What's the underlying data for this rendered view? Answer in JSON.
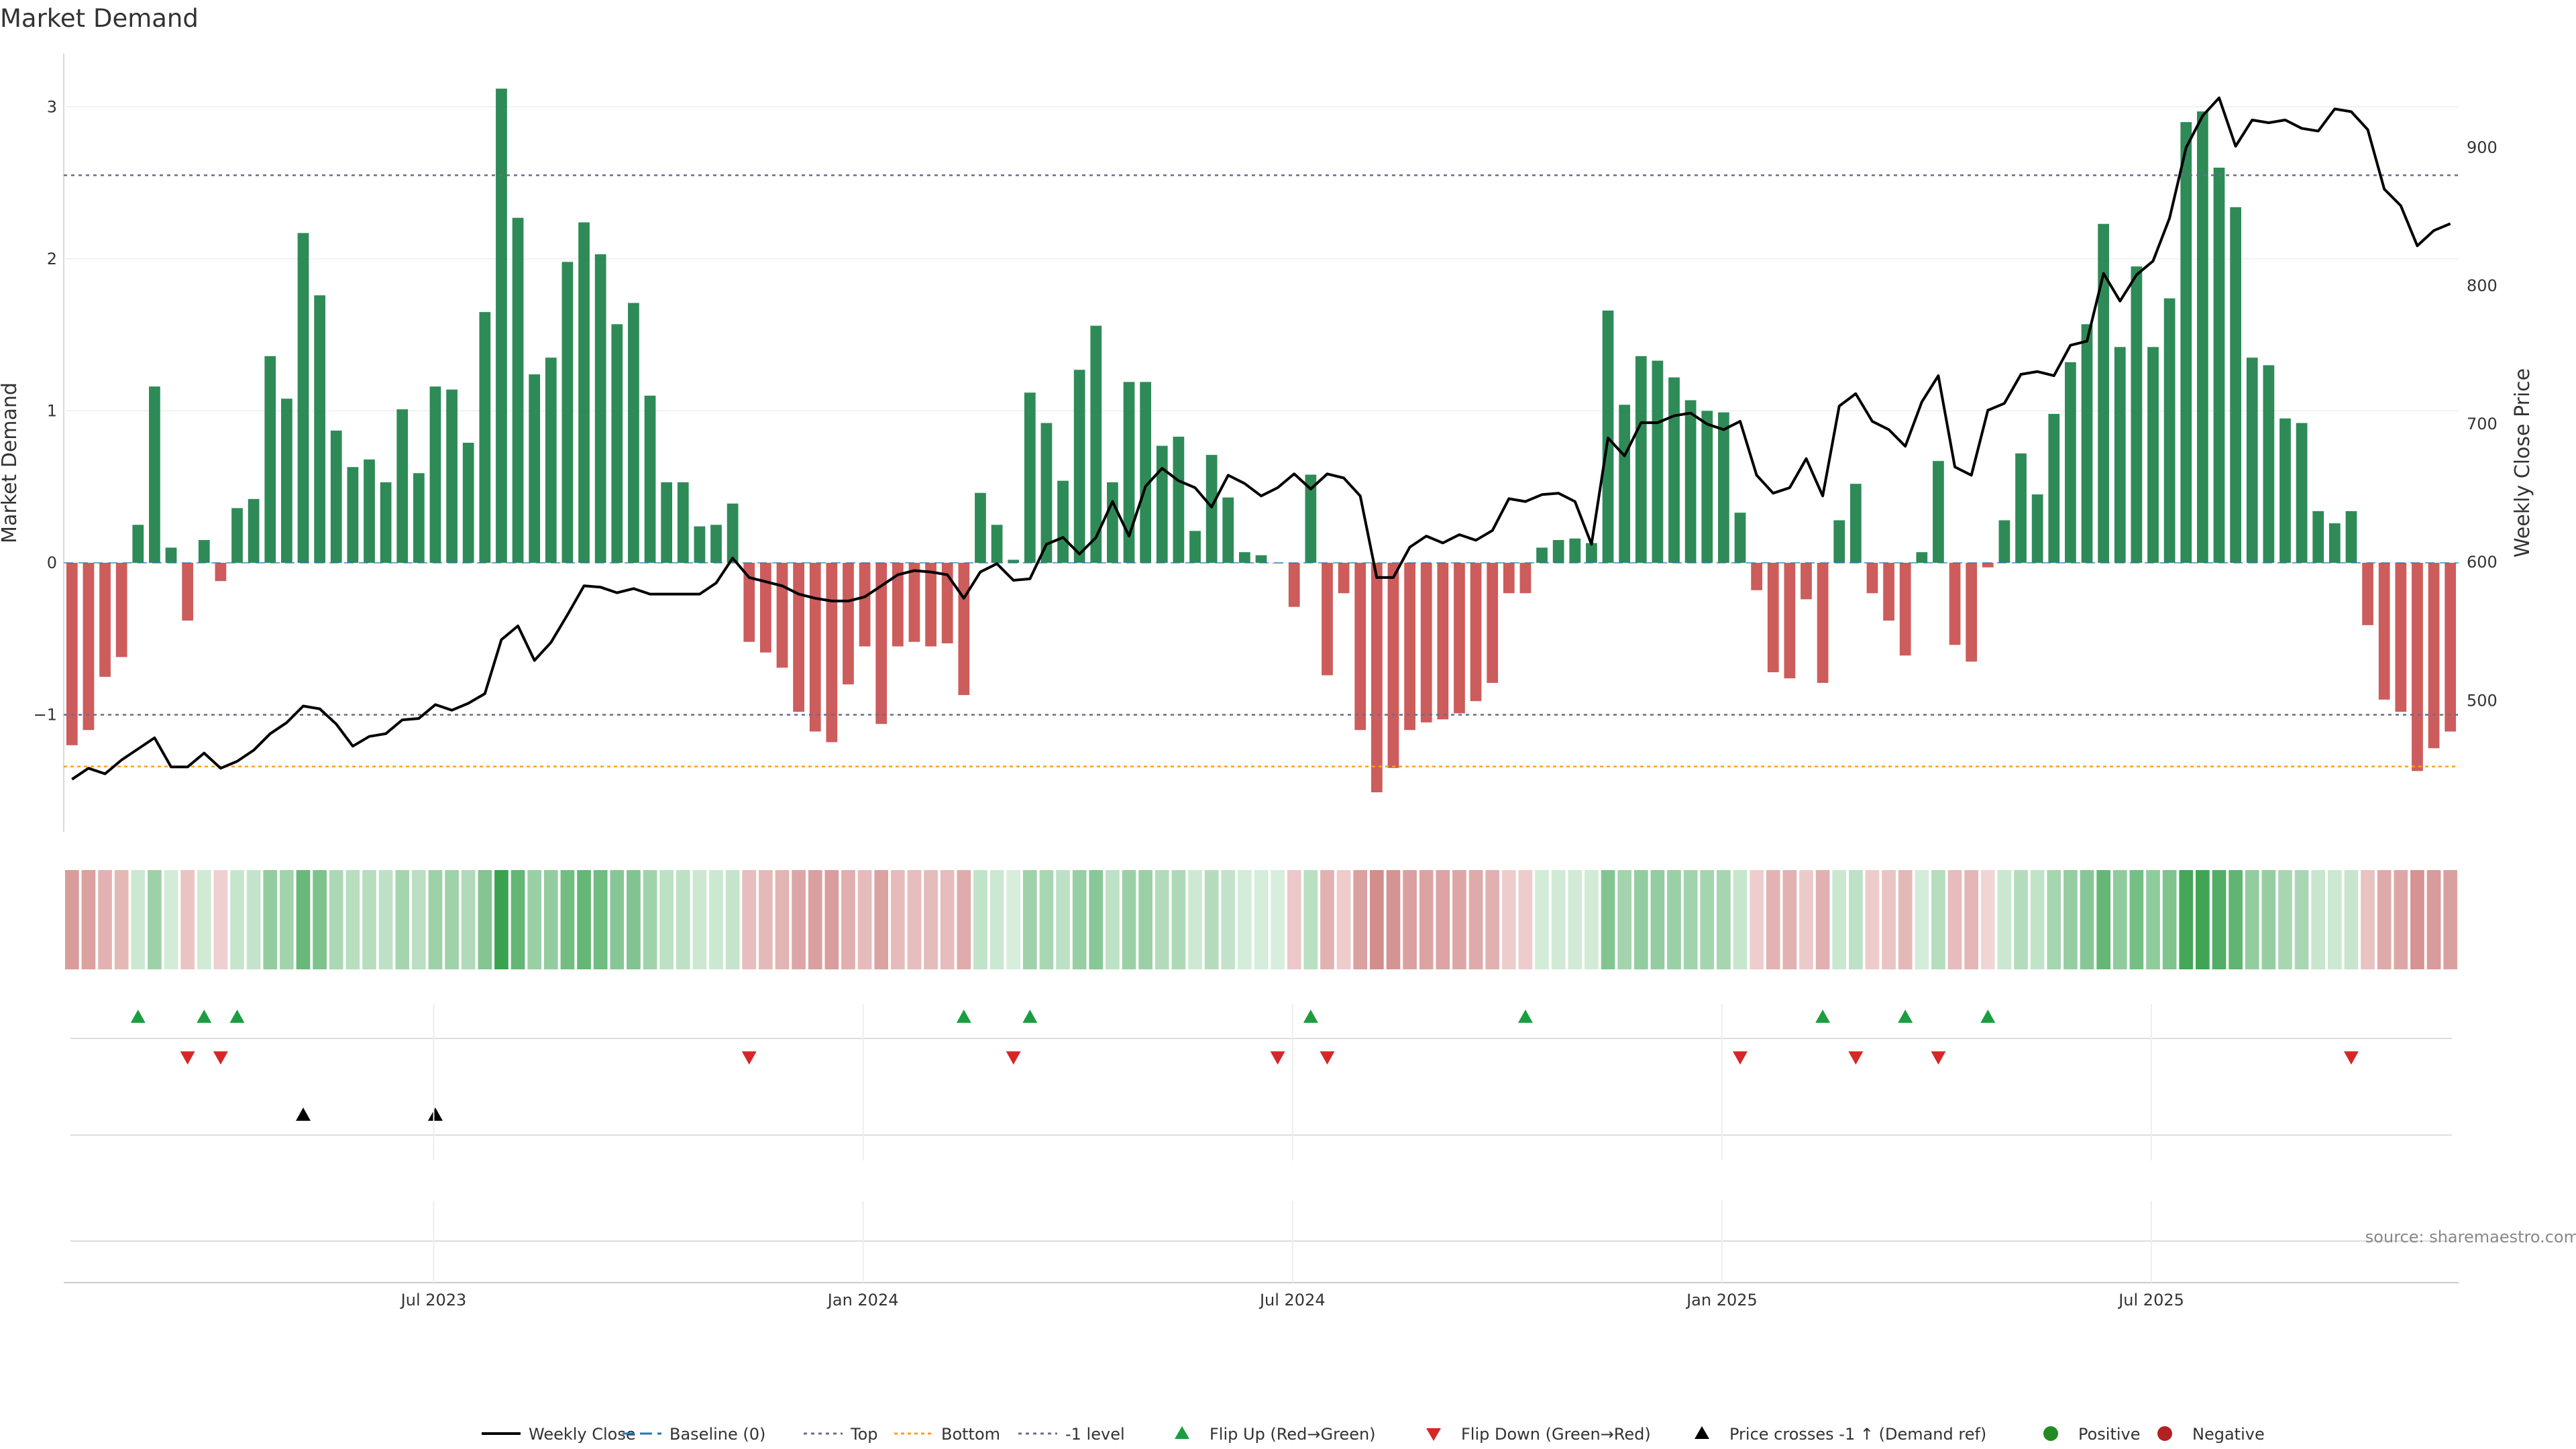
{
  "colors": {
    "positive_bar": "#2e8b57",
    "negative_bar": "#cd5c5c",
    "price_line": "#000000",
    "top_line": "#6c6c8c",
    "bottom_line": "#ff9f1c",
    "minus1_line": "#6c6c8c",
    "flip_up": "#1a9e3f",
    "flip_down": "#d62728",
    "cross_marker": "#000000",
    "positive_dot": "#228b22",
    "negative_dot": "#b22222",
    "heat_pos_strong": "#3aa14f",
    "heat_pos_weak": "#d8eedd",
    "heat_neg_strong": "#d28d8d",
    "heat_neg_weak": "#f2d6d6"
  },
  "source": "source: sharemaestro.com",
  "chart_data": {
    "type": "bar",
    "title": "Market Demand",
    "ylabel_left": "Market Demand",
    "ylabel_right": "Weekly Close Price",
    "ylim_left": [
      -1.77,
      3.35
    ],
    "ylim_right": [
      405,
      968
    ],
    "left_ticks": [
      "3",
      "2",
      "1",
      "0",
      "−1"
    ],
    "right_ticks": [
      "900",
      "800",
      "700",
      "600",
      "500"
    ],
    "x_ticks": [
      "Jul 2023",
      "Jan 2024",
      "Jul 2024",
      "Jan 2025",
      "Jul 2025"
    ],
    "levels": {
      "top": 2.55,
      "bottom": -1.34,
      "minus1": -1.0
    },
    "grid": true,
    "legend_position": "bottom-center",
    "series": [
      {
        "name": "Market Demand",
        "values": [
          -1.2,
          -1.1,
          -0.75,
          -0.62,
          0.25,
          1.16,
          0.1,
          -0.38,
          0.15,
          -0.12,
          0.36,
          0.42,
          1.36,
          1.08,
          2.17,
          1.76,
          0.87,
          0.63,
          0.68,
          0.53,
          1.01,
          0.59,
          1.16,
          1.14,
          0.79,
          1.65,
          3.12,
          2.27,
          1.24,
          1.35,
          1.98,
          2.24,
          2.03,
          1.57,
          1.71,
          1.1,
          0.53,
          0.53,
          0.24,
          0.25,
          0.39,
          -0.52,
          -0.59,
          -0.69,
          -0.98,
          -1.11,
          -1.18,
          -0.8,
          -0.55,
          -1.06,
          -0.55,
          -0.52,
          -0.55,
          -0.53,
          -0.87,
          0.46,
          0.25,
          0.02,
          1.12,
          0.92,
          0.54,
          1.27,
          1.56,
          0.53,
          1.19,
          1.19,
          0.77,
          0.83,
          0.21,
          0.71,
          0.43,
          0.07,
          0.05,
          0.0,
          -0.29,
          0.58,
          -0.74,
          -0.2,
          -1.1,
          -1.51,
          -1.35,
          -1.1,
          -1.05,
          -1.03,
          -0.99,
          -0.91,
          -0.79,
          -0.2,
          -0.2,
          0.1,
          0.15,
          0.16,
          0.13,
          1.66,
          1.04,
          1.36,
          1.33,
          1.22,
          1.07,
          1.0,
          0.99,
          0.33,
          -0.18,
          -0.72,
          -0.76,
          -0.24,
          -0.79,
          0.28,
          0.52,
          -0.2,
          -0.38,
          -0.61,
          0.07,
          0.67,
          -0.54,
          -0.65,
          -0.03,
          0.28,
          0.72,
          0.45,
          0.98,
          1.32,
          1.57,
          2.23,
          1.42,
          1.95,
          1.42,
          1.74,
          2.9,
          2.97,
          2.6,
          2.34,
          1.35,
          1.3,
          0.95,
          0.92,
          0.34,
          0.26,
          0.34,
          -0.41,
          -0.9,
          -0.98,
          -1.37,
          -1.22,
          -1.11
        ]
      },
      {
        "name": "Weekly Close",
        "values": [
          443,
          451,
          447,
          457,
          465,
          473,
          452,
          452,
          462,
          451,
          456,
          464,
          476,
          484,
          496,
          494,
          483,
          467,
          474,
          476,
          486,
          487,
          497,
          493,
          498,
          505,
          544,
          554,
          529,
          542,
          562,
          583,
          582,
          578,
          581,
          577,
          577,
          577,
          577,
          585,
          603,
          589,
          586,
          583,
          577,
          574,
          572,
          572,
          575,
          583,
          591,
          594,
          593,
          591,
          574,
          593,
          599,
          587,
          588,
          613,
          618,
          606,
          618,
          644,
          619,
          655,
          668,
          659,
          654,
          640,
          663,
          657,
          648,
          654,
          664,
          653,
          664,
          661,
          648,
          589,
          589,
          611,
          619,
          614,
          620,
          616,
          623,
          646,
          644,
          649,
          650,
          644,
          613,
          690,
          677,
          701,
          701,
          706,
          708,
          700,
          696,
          702,
          663,
          650,
          654,
          675,
          648,
          713,
          722,
          702,
          696,
          684,
          716,
          735,
          669,
          663,
          710,
          715,
          736,
          738,
          735,
          757,
          760,
          809,
          789,
          808,
          818,
          849,
          900,
          923,
          936,
          901,
          920,
          918,
          920,
          914,
          912,
          928,
          926,
          913,
          870,
          858,
          829,
          840,
          845
        ]
      }
    ],
    "heat_row": {
      "name": "Demand strength",
      "values": "same as Market Demand series"
    },
    "flip_up_weeks": [
      4,
      8,
      10,
      54,
      58,
      75,
      88,
      106,
      111,
      116
    ],
    "flip_down_weeks": [
      7,
      9,
      41,
      57,
      73,
      76,
      101,
      108,
      113,
      138
    ],
    "price_cross_weeks": [
      14,
      22
    ],
    "legend": [
      {
        "key": "weekly_close",
        "label": "Weekly Close"
      },
      {
        "key": "baseline",
        "label": "Baseline (0)"
      },
      {
        "key": "top",
        "label": "Top"
      },
      {
        "key": "bottom",
        "label": "Bottom"
      },
      {
        "key": "minus1",
        "label": "-1 level"
      },
      {
        "key": "flip_up",
        "label": "Flip Up (Red→Green)"
      },
      {
        "key": "flip_down",
        "label": "Flip Down (Green→Red)"
      },
      {
        "key": "price_cross",
        "label": "Price crosses -1 ↑ (Demand ref)"
      },
      {
        "key": "positive",
        "label": "Positive"
      },
      {
        "key": "negative",
        "label": "Negative"
      }
    ]
  }
}
